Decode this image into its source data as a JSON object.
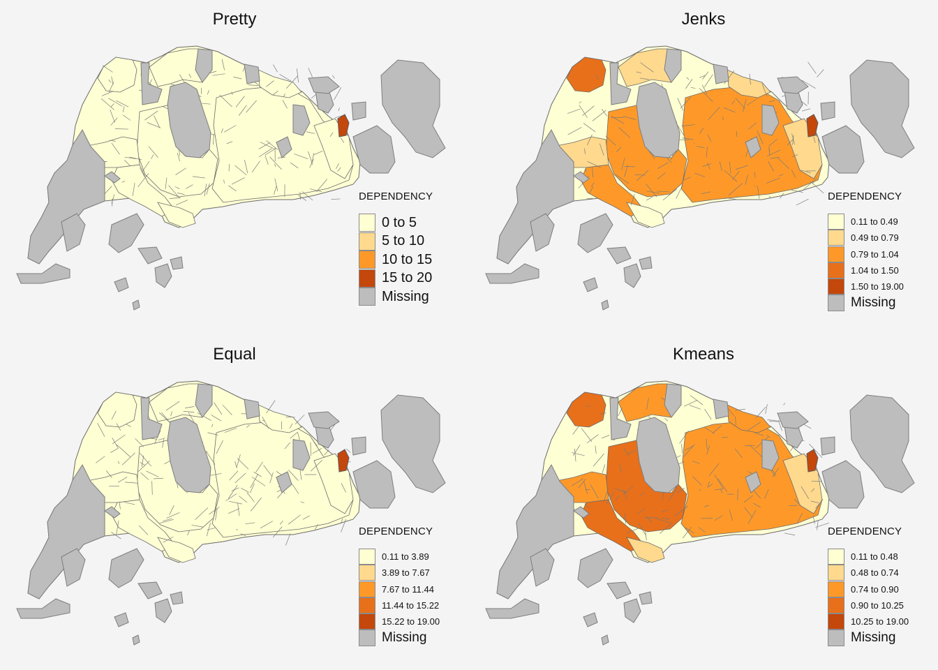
{
  "colors": {
    "c1": "#ffffd4",
    "c2": "#fed98e",
    "c3": "#fe9929",
    "c4": "#e8701a",
    "c5": "#c4470b",
    "missing": "#bdbdbd",
    "background": "#f4f4f4"
  },
  "panels": [
    {
      "title": "Pretty",
      "legend_title": "DEPENDENCY",
      "legend_style": "big",
      "classes": [
        "0 to 5",
        "5 to 10",
        "10 to 15",
        "15 to 20"
      ],
      "missing_label": "Missing",
      "region_classes": {
        "west": 0,
        "northwest": 0,
        "central": 0,
        "north": 0,
        "east": 0,
        "punggol": 0,
        "tampines": 0,
        "southwest": 0,
        "south": 0,
        "special": 3
      }
    },
    {
      "title": "Jenks",
      "legend_title": "DEPENDENCY",
      "legend_style": "small",
      "classes": [
        "0.11 to 0.49",
        "0.49 to 0.79",
        "0.79 to 1.04",
        "1.04 to 1.50",
        "1.50 to 19.00"
      ],
      "missing_label": "Missing",
      "region_classes": {
        "west": 1,
        "northwest": 3,
        "central": 2,
        "north": 1,
        "east": 2,
        "punggol": 1,
        "tampines": 1,
        "southwest": 2,
        "south": 0,
        "special": 4
      }
    },
    {
      "title": "Equal",
      "legend_title": "DEPENDENCY",
      "legend_style": "small",
      "classes": [
        "0.11 to 3.89",
        "3.89 to 7.67",
        "7.67 to 11.44",
        "11.44 to 15.22",
        "15.22 to 19.00"
      ],
      "missing_label": "Missing",
      "region_classes": {
        "west": 0,
        "northwest": 0,
        "central": 0,
        "north": 0,
        "east": 0,
        "punggol": 0,
        "tampines": 0,
        "southwest": 0,
        "south": 0,
        "special": 4
      }
    },
    {
      "title": "Kmeans",
      "legend_title": "DEPENDENCY",
      "legend_style": "small",
      "classes": [
        "0.11 to 0.48",
        "0.48 to 0.74",
        "0.74 to 0.90",
        "0.90 to 10.25",
        "10.25 to 19.00"
      ],
      "missing_label": "Missing",
      "region_classes": {
        "west": 2,
        "northwest": 3,
        "central": 3,
        "north": 2,
        "east": 2,
        "punggol": 2,
        "tampines": 1,
        "southwest": 3,
        "south": 1,
        "special": 4
      }
    }
  ]
}
